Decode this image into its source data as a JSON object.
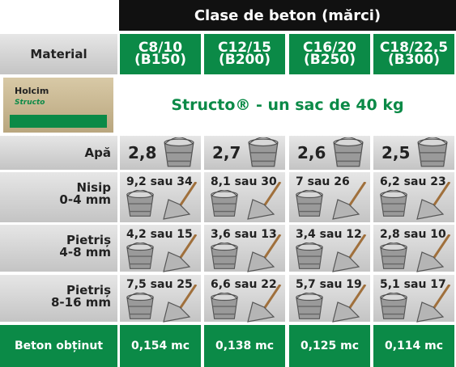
{
  "header": {
    "title": "Clase de beton (mărci)",
    "material_label": "Material"
  },
  "classes": [
    {
      "label": "C8/10",
      "alt": "(B150)"
    },
    {
      "label": "C12/15",
      "alt": "(B200)"
    },
    {
      "label": "C16/20",
      "alt": "(B250)"
    },
    {
      "label": "C18/22,5",
      "alt": "(B300)"
    }
  ],
  "product": {
    "brand": "Holcim",
    "name": "Structo",
    "caption": "Structo® - un sac de 40 kg"
  },
  "rows": [
    {
      "label": "Apă",
      "values": [
        "2,8",
        "2,7",
        "2,6",
        "2,5"
      ]
    },
    {
      "label": "Nisip",
      "sublabel": "0-4 mm",
      "values": [
        "9,2 sau 34",
        "8,1 sau 30",
        "7 sau 26",
        "6,2 sau 23"
      ]
    },
    {
      "label": "Pietriș",
      "sublabel": "4-8 mm",
      "values": [
        "4,2 sau 15",
        "3,6 sau 13",
        "3,4 sau 12",
        "2,8 sau 10"
      ]
    },
    {
      "label": "Pietriș",
      "sublabel": "8-16 mm",
      "values": [
        "7,5 sau 25",
        "6,6 sau 22",
        "5,7 sau 19",
        "5,1 sau 17"
      ]
    }
  ],
  "result": {
    "label": "Beton obținut",
    "values": [
      "0,154 mc",
      "0,138 mc",
      "0,125 mc",
      "0,114 mc"
    ]
  }
}
